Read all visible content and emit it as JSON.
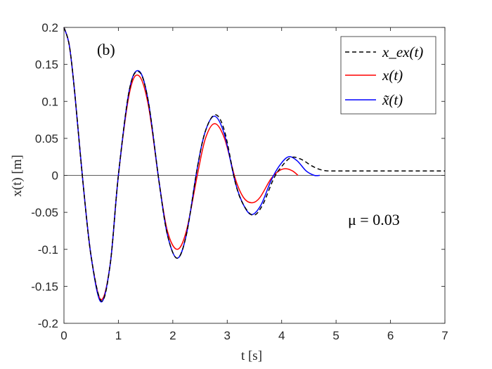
{
  "chart_data": {
    "type": "line",
    "panel_label": "(b)",
    "annotation": "μ = 0.03",
    "xlabel": "t [s]",
    "ylabel": "x(t) [m]",
    "xlim": [
      0,
      7
    ],
    "ylim": [
      -0.2,
      0.2
    ],
    "xticks": [
      "0",
      "1",
      "2",
      "3",
      "4",
      "5",
      "6",
      "7"
    ],
    "yticks": [
      "0.2",
      "0.15",
      "0.1",
      "0.05",
      "0",
      "-0.05",
      "-0.1",
      "-0.15",
      "-0.2"
    ],
    "grid": false,
    "zero_line": true,
    "legend_position": "top-right",
    "series": [
      {
        "name": "x_ex(t)",
        "color": "#000000",
        "dash": "dashed",
        "x": [
          0,
          0.1,
          0.2,
          0.35,
          0.5,
          0.69,
          0.85,
          1.0,
          1.2,
          1.38,
          1.55,
          1.75,
          1.9,
          2.08,
          2.25,
          2.45,
          2.6,
          2.78,
          2.95,
          3.15,
          3.3,
          3.48,
          3.65,
          3.85,
          4.0,
          4.17,
          4.35,
          4.55,
          4.7,
          4.85,
          5.0,
          6.0,
          7.0
        ],
        "y": [
          0.2,
          0.175,
          0.11,
          -0.01,
          -0.11,
          -0.17,
          -0.12,
          0.0,
          0.115,
          0.14,
          0.1,
          -0.01,
          -0.08,
          -0.112,
          -0.08,
          0.01,
          0.06,
          0.082,
          0.06,
          -0.01,
          -0.04,
          -0.054,
          -0.04,
          -0.005,
          0.012,
          0.024,
          0.022,
          0.013,
          0.008,
          0.006,
          0.006,
          0.006,
          0.006
        ]
      },
      {
        "name": "x(t)",
        "color": "#ff0000",
        "dash": "solid",
        "x": [
          0,
          0.1,
          0.2,
          0.35,
          0.5,
          0.68,
          0.85,
          1.0,
          1.2,
          1.37,
          1.55,
          1.75,
          1.9,
          2.08,
          2.25,
          2.45,
          2.6,
          2.77,
          2.95,
          3.15,
          3.3,
          3.45,
          3.6,
          3.8,
          3.95,
          4.07,
          4.2,
          4.3
        ],
        "y": [
          0.2,
          0.175,
          0.11,
          -0.01,
          -0.11,
          -0.168,
          -0.12,
          0.0,
          0.11,
          0.135,
          0.095,
          -0.01,
          -0.075,
          -0.1,
          -0.075,
          0.0,
          0.05,
          0.07,
          0.05,
          -0.005,
          -0.03,
          -0.037,
          -0.03,
          -0.005,
          0.006,
          0.009,
          0.006,
          0.0
        ]
      },
      {
        "name": "x̃(t)",
        "color": "#0000ff",
        "dash": "solid",
        "x": [
          0,
          0.1,
          0.2,
          0.35,
          0.5,
          0.68,
          0.85,
          1.0,
          1.2,
          1.38,
          1.55,
          1.75,
          1.9,
          2.08,
          2.25,
          2.45,
          2.6,
          2.77,
          2.95,
          3.15,
          3.3,
          3.45,
          3.62,
          3.8,
          3.95,
          4.12,
          4.28,
          4.45,
          4.6,
          4.7
        ],
        "y": [
          0.2,
          0.175,
          0.11,
          -0.01,
          -0.11,
          -0.171,
          -0.12,
          0.0,
          0.115,
          0.141,
          0.1,
          -0.01,
          -0.08,
          -0.112,
          -0.08,
          0.01,
          0.06,
          0.08,
          0.055,
          -0.01,
          -0.04,
          -0.053,
          -0.04,
          -0.008,
          0.012,
          0.025,
          0.02,
          0.006,
          0.0,
          0.0
        ]
      }
    ]
  }
}
